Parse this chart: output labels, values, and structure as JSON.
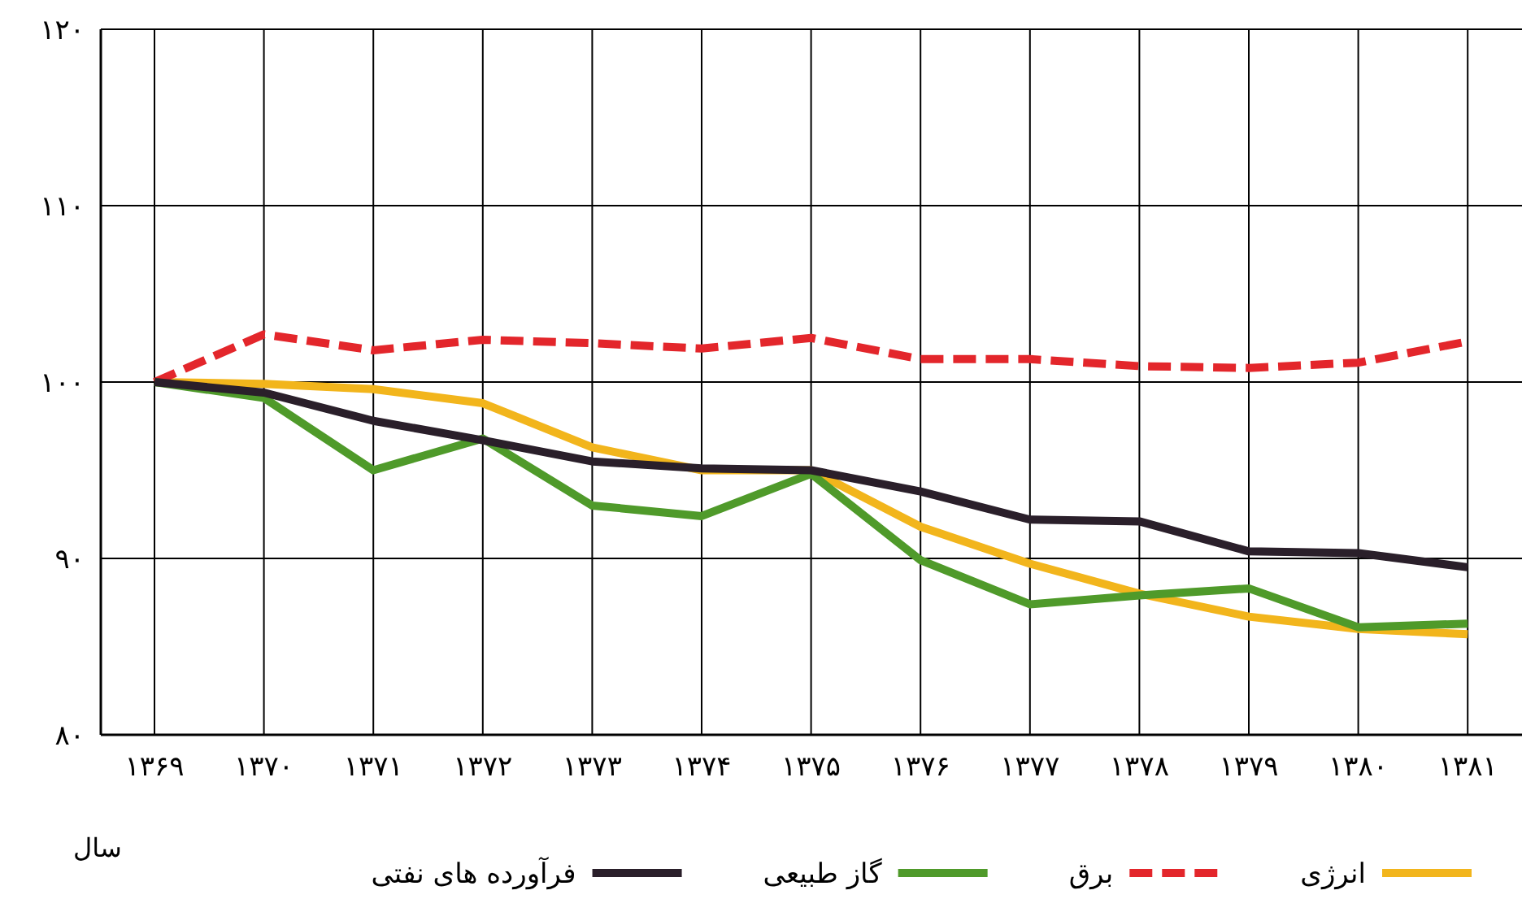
{
  "chart_data": {
    "type": "line",
    "xlabel": "سال",
    "categories": [
      "۱۳۶۹",
      "۱۳۷۰",
      "۱۳۷۱",
      "۱۳۷۲",
      "۱۳۷۳",
      "۱۳۷۴",
      "۱۳۷۵",
      "۱۳۷۶",
      "۱۳۷۷",
      "۱۳۷۸",
      "۱۳۷۹",
      "۱۳۸۰",
      "۱۳۸۱"
    ],
    "series": [
      {
        "name": "انرژی",
        "color": "#f2b51c",
        "line_style": "solid",
        "values": [
          100,
          99.9,
          99.6,
          98.8,
          96.3,
          95.0,
          95.0,
          91.8,
          89.7,
          88.0,
          86.7,
          86.0,
          85.7
        ]
      },
      {
        "name": "برق",
        "color": "#e3262b",
        "line_style": "dashed",
        "values": [
          100,
          102.7,
          101.8,
          102.4,
          102.2,
          101.9,
          102.5,
          101.3,
          101.3,
          100.9,
          100.8,
          101.1,
          102.3
        ]
      },
      {
        "name": "گاز طبیعی",
        "color": "#4f9a2a",
        "line_style": "solid",
        "values": [
          100,
          99.1,
          95.0,
          96.8,
          93.0,
          92.4,
          94.8,
          89.9,
          87.4,
          87.9,
          88.3,
          86.1,
          86.3
        ]
      },
      {
        "name": "فرآورده های نفتی",
        "color": "#2a1f2a",
        "line_style": "solid",
        "values": [
          100,
          99.4,
          97.8,
          96.7,
          95.5,
          95.1,
          95.0,
          93.8,
          92.2,
          92.1,
          90.4,
          90.3,
          89.5
        ]
      }
    ],
    "ylim": [
      80,
      120
    ],
    "yticks": [
      {
        "value": 80,
        "label": "۸۰"
      },
      {
        "value": 90,
        "label": "۹۰"
      },
      {
        "value": 100,
        "label": "۱۰۰"
      },
      {
        "value": 110,
        "label": "۱۱۰"
      },
      {
        "value": 120,
        "label": "۱۲۰"
      }
    ],
    "grid": true,
    "legend": "bottom",
    "marker": "none"
  }
}
